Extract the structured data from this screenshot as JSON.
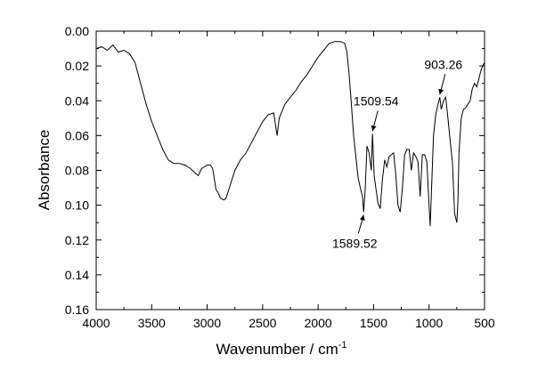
{
  "chart_data": {
    "type": "line",
    "title": "",
    "xlabel": "Wavenumber / cm",
    "xlabel_superscript": "-1",
    "ylabel": "Absorbance",
    "xlim": [
      4000,
      500
    ],
    "ylim": [
      0.0,
      0.16
    ],
    "y_inverted": true,
    "grid": false,
    "legend": "none",
    "x_ticks": [
      "4000",
      "3500",
      "3000",
      "2500",
      "2000",
      "1500",
      "1000",
      "500"
    ],
    "y_ticks": [
      "0.00",
      "0.02",
      "0.04",
      "0.06",
      "0.08",
      "0.10",
      "0.12",
      "0.14",
      "0.16"
    ],
    "series": [
      {
        "color": "#000000",
        "x": [
          4000,
          3950,
          3900,
          3850,
          3800,
          3750,
          3700,
          3650,
          3600,
          3550,
          3500,
          3450,
          3400,
          3350,
          3300,
          3250,
          3200,
          3150,
          3100,
          3080,
          3050,
          3000,
          2970,
          2950,
          2920,
          2900,
          2880,
          2850,
          2830,
          2800,
          2750,
          2700,
          2650,
          2600,
          2550,
          2500,
          2450,
          2400,
          2370,
          2350,
          2300,
          2250,
          2200,
          2150,
          2100,
          2050,
          2000,
          1950,
          1900,
          1850,
          1800,
          1760,
          1740,
          1720,
          1700,
          1680,
          1660,
          1640,
          1620,
          1600,
          1589.52,
          1575,
          1560,
          1540,
          1520,
          1509.54,
          1495,
          1480,
          1460,
          1440,
          1420,
          1400,
          1380,
          1360,
          1340,
          1320,
          1300,
          1280,
          1260,
          1240,
          1220,
          1200,
          1180,
          1160,
          1140,
          1120,
          1100,
          1080,
          1060,
          1040,
          1020,
          1000,
          990,
          980,
          960,
          940,
          920,
          903.26,
          890,
          870,
          850,
          830,
          810,
          790,
          770,
          750,
          740,
          730,
          710,
          690,
          670,
          650,
          630,
          610,
          590,
          570,
          550,
          530,
          510,
          500
        ],
        "y": [
          0.01,
          0.009,
          0.011,
          0.008,
          0.012,
          0.011,
          0.013,
          0.018,
          0.03,
          0.042,
          0.052,
          0.06,
          0.068,
          0.074,
          0.076,
          0.076,
          0.077,
          0.079,
          0.082,
          0.083,
          0.079,
          0.077,
          0.077,
          0.079,
          0.091,
          0.093,
          0.096,
          0.097,
          0.096,
          0.09,
          0.08,
          0.074,
          0.07,
          0.064,
          0.058,
          0.052,
          0.048,
          0.047,
          0.06,
          0.05,
          0.042,
          0.038,
          0.034,
          0.029,
          0.025,
          0.02,
          0.015,
          0.011,
          0.007,
          0.006,
          0.006,
          0.007,
          0.012,
          0.025,
          0.042,
          0.06,
          0.072,
          0.084,
          0.09,
          0.095,
          0.104,
          0.09,
          0.066,
          0.07,
          0.08,
          0.059,
          0.083,
          0.09,
          0.099,
          0.102,
          0.085,
          0.074,
          0.078,
          0.072,
          0.071,
          0.07,
          0.082,
          0.1,
          0.104,
          0.09,
          0.071,
          0.068,
          0.068,
          0.08,
          0.07,
          0.072,
          0.075,
          0.095,
          0.071,
          0.071,
          0.075,
          0.1,
          0.112,
          0.095,
          0.06,
          0.048,
          0.042,
          0.038,
          0.045,
          0.04,
          0.038,
          0.05,
          0.063,
          0.075,
          0.105,
          0.11,
          0.098,
          0.07,
          0.05,
          0.045,
          0.044,
          0.042,
          0.04,
          0.033,
          0.03,
          0.032,
          0.027,
          0.022,
          0.019,
          0.018
        ]
      }
    ],
    "annotations": [
      {
        "text": "1589.52",
        "x": 1589.52,
        "y": 0.104,
        "label_position": "below"
      },
      {
        "text": "1509.54",
        "x": 1509.54,
        "y": 0.059,
        "label_position": "above"
      },
      {
        "text": "903.26",
        "x": 903.26,
        "y": 0.038,
        "label_position": "above"
      }
    ]
  }
}
